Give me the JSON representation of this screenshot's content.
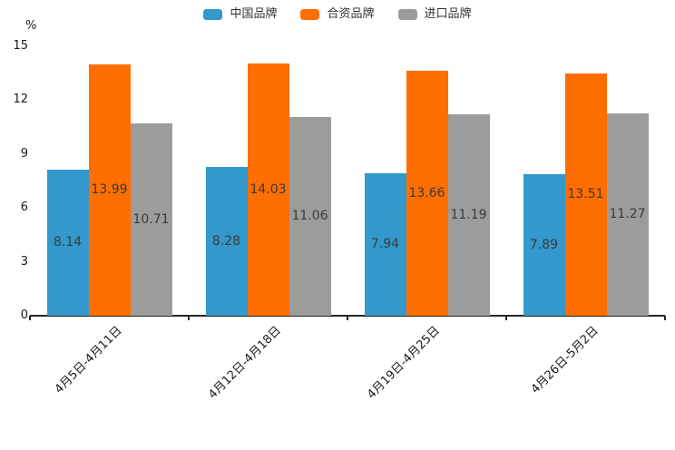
{
  "chart_data": {
    "type": "bar",
    "title": "",
    "ylabel": "%",
    "xlabel": "",
    "categories": [
      "4月5日-4月11日",
      "4月12日-4月18日",
      "4月19日-4月25日",
      "4月26日-5月2日"
    ],
    "series": [
      {
        "name": "中国品牌",
        "color": "#3398CC",
        "values": [
          8.14,
          8.28,
          7.94,
          7.89
        ]
      },
      {
        "name": "合资品牌",
        "color": "#FF6E00",
        "values": [
          13.99,
          14.03,
          13.66,
          13.51
        ]
      },
      {
        "name": "进口品牌",
        "color": "#9C9C9C",
        "values": [
          10.71,
          11.06,
          11.19,
          11.27
        ]
      }
    ],
    "y_ticks": [
      0,
      3,
      6,
      9,
      12,
      15
    ],
    "ylim": [
      0,
      15
    ],
    "legend_position": "top-center",
    "grid": false,
    "value_labels_decimals": 2,
    "axis_color": "#262626",
    "text_color": "#1a1a1a"
  }
}
